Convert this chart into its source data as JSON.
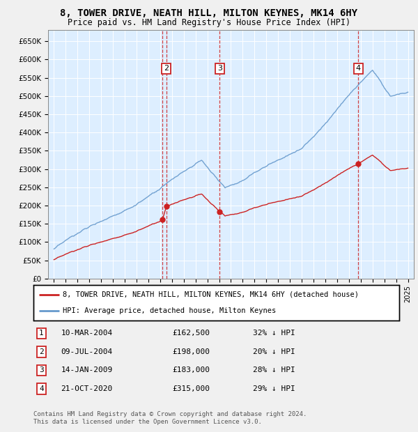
{
  "title": "8, TOWER DRIVE, NEATH HILL, MILTON KEYNES, MK14 6HY",
  "subtitle": "Price paid vs. HM Land Registry's House Price Index (HPI)",
  "legend_label_red": "8, TOWER DRIVE, NEATH HILL, MILTON KEYNES, MK14 6HY (detached house)",
  "legend_label_blue": "HPI: Average price, detached house, Milton Keynes",
  "footer1": "Contains HM Land Registry data © Crown copyright and database right 2024.",
  "footer2": "This data is licensed under the Open Government Licence v3.0.",
  "transactions": [
    {
      "num": 1,
      "date_str": "10-MAR-2004",
      "price": 162500,
      "pct": "32% ↓ HPI",
      "x": 2004.19
    },
    {
      "num": 2,
      "date_str": "09-JUL-2004",
      "price": 198000,
      "pct": "20% ↓ HPI",
      "x": 2004.52
    },
    {
      "num": 3,
      "date_str": "14-JAN-2009",
      "price": 183000,
      "pct": "28% ↓ HPI",
      "x": 2009.04
    },
    {
      "num": 4,
      "date_str": "21-OCT-2020",
      "price": 315000,
      "pct": "29% ↓ HPI",
      "x": 2020.8
    }
  ],
  "xlim": [
    1994.5,
    2025.5
  ],
  "ylim": [
    0,
    680000
  ],
  "yticks": [
    0,
    50000,
    100000,
    150000,
    200000,
    250000,
    300000,
    350000,
    400000,
    450000,
    500000,
    550000,
    600000,
    650000
  ],
  "ytick_labels": [
    "£0",
    "£50K",
    "£100K",
    "£150K",
    "£200K",
    "£250K",
    "£300K",
    "£350K",
    "£400K",
    "£450K",
    "£500K",
    "£550K",
    "£600K",
    "£650K"
  ],
  "hpi_color": "#6699cc",
  "sale_color": "#cc2222",
  "bg_plot": "#ddeeff",
  "bg_fig": "#f0f0f0"
}
